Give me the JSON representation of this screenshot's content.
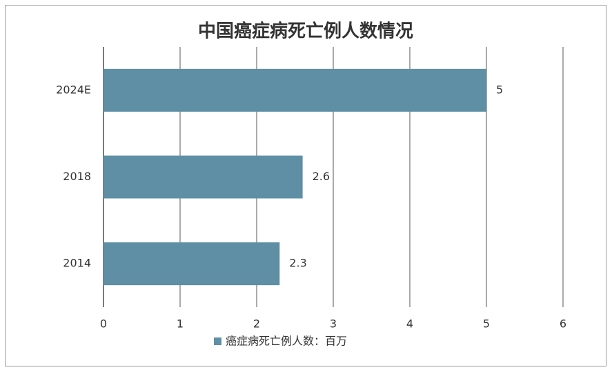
{
  "chart_data": {
    "type": "barh",
    "title": "中国癌症病死亡例人数情况",
    "categories": [
      "2024E",
      "2018",
      "2014"
    ],
    "series": [
      {
        "name": "癌症病死亡例人数：百万",
        "color": "#5f8fa5",
        "values": [
          5,
          2.6,
          2.3
        ]
      }
    ],
    "xlim": [
      0,
      6
    ],
    "xticks": [
      0,
      1,
      2,
      3,
      4,
      5,
      6
    ],
    "grid": true,
    "legend": "bottom"
  }
}
